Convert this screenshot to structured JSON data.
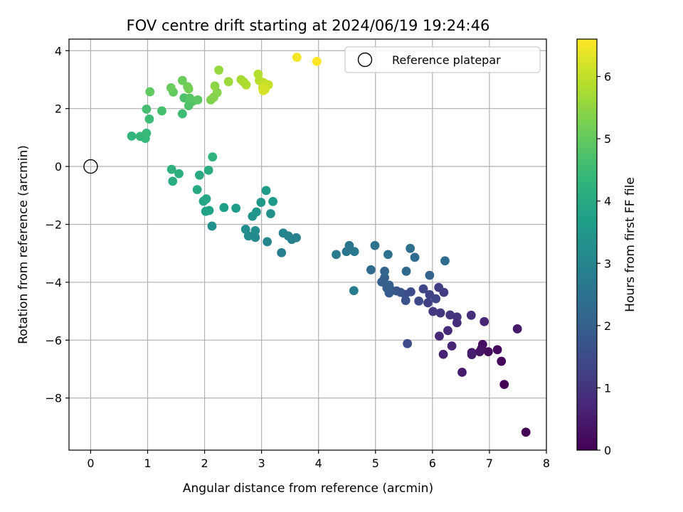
{
  "chart_data": {
    "type": "scatter",
    "title": "FOV centre drift starting at 2024/06/19 19:24:46",
    "xlabel": "Angular distance from reference (arcmin)",
    "ylabel": "Rotation from reference (arcmin)",
    "xlim": [
      -0.38,
      8.0
    ],
    "ylim": [
      -9.8,
      4.4
    ],
    "xticks": [
      0,
      1,
      2,
      3,
      4,
      5,
      6,
      7,
      8
    ],
    "yticks": [
      4,
      2,
      0,
      -2,
      -4,
      -6,
      -8
    ],
    "grid": true,
    "legend": {
      "position": "top-right",
      "entries": [
        {
          "label": "Reference platepar",
          "marker": "open-circle"
        }
      ]
    },
    "reference_point": {
      "x": 0,
      "y": 0
    },
    "colorbar": {
      "label": "Hours from first FF file",
      "colormap": "viridis",
      "range": [
        0,
        6.6
      ],
      "ticks": [
        0,
        1,
        2,
        3,
        4,
        5,
        6
      ]
    },
    "points": [
      {
        "x": 7.64,
        "y": -9.18,
        "h": 0.0
      },
      {
        "x": 7.26,
        "y": -7.53,
        "h": 0.05
      },
      {
        "x": 7.21,
        "y": -6.73,
        "h": 0.1
      },
      {
        "x": 7.14,
        "y": -6.33,
        "h": 0.15
      },
      {
        "x": 6.98,
        "y": -6.4,
        "h": 0.2
      },
      {
        "x": 6.88,
        "y": -6.15,
        "h": 0.25
      },
      {
        "x": 6.86,
        "y": -6.3,
        "h": 0.3
      },
      {
        "x": 6.83,
        "y": -6.4,
        "h": 0.35
      },
      {
        "x": 6.69,
        "y": -6.43,
        "h": 0.4
      },
      {
        "x": 7.49,
        "y": -5.61,
        "h": 0.45
      },
      {
        "x": 6.52,
        "y": -7.11,
        "h": 0.5
      },
      {
        "x": 6.69,
        "y": -6.5,
        "h": 0.55
      },
      {
        "x": 6.19,
        "y": -6.49,
        "h": 0.6
      },
      {
        "x": 6.34,
        "y": -6.2,
        "h": 0.65
      },
      {
        "x": 6.91,
        "y": -5.36,
        "h": 0.7
      },
      {
        "x": 6.12,
        "y": -5.86,
        "h": 0.75
      },
      {
        "x": 6.27,
        "y": -5.67,
        "h": 0.8
      },
      {
        "x": 6.43,
        "y": -5.4,
        "h": 0.85
      },
      {
        "x": 6.68,
        "y": -5.14,
        "h": 0.9
      },
      {
        "x": 6.43,
        "y": -5.2,
        "h": 0.95
      },
      {
        "x": 6.31,
        "y": -5.13,
        "h": 1.0
      },
      {
        "x": 6.14,
        "y": -5.06,
        "h": 1.05
      },
      {
        "x": 6.01,
        "y": -5.01,
        "h": 1.1
      },
      {
        "x": 6.2,
        "y": -4.35,
        "h": 1.15
      },
      {
        "x": 6.11,
        "y": -4.18,
        "h": 1.2
      },
      {
        "x": 5.92,
        "y": -4.71,
        "h": 1.25
      },
      {
        "x": 5.95,
        "y": -4.43,
        "h": 1.3
      },
      {
        "x": 6.06,
        "y": -4.57,
        "h": 1.35
      },
      {
        "x": 5.84,
        "y": -4.23,
        "h": 1.4
      },
      {
        "x": 5.76,
        "y": -4.65,
        "h": 1.45
      },
      {
        "x": 5.56,
        "y": -6.12,
        "h": 1.5
      },
      {
        "x": 5.62,
        "y": -4.33,
        "h": 1.55
      },
      {
        "x": 5.52,
        "y": -4.42,
        "h": 1.6
      },
      {
        "x": 5.53,
        "y": -4.63,
        "h": 1.65
      },
      {
        "x": 5.44,
        "y": -4.35,
        "h": 1.7
      },
      {
        "x": 5.37,
        "y": -4.3,
        "h": 1.75
      },
      {
        "x": 5.28,
        "y": -4.28,
        "h": 1.8
      },
      {
        "x": 5.24,
        "y": -4.37,
        "h": 1.85
      },
      {
        "x": 5.2,
        "y": -4.2,
        "h": 1.9
      },
      {
        "x": 5.16,
        "y": -3.84,
        "h": 1.95
      },
      {
        "x": 5.11,
        "y": -3.99,
        "h": 2.0
      },
      {
        "x": 5.24,
        "y": -4.1,
        "h": 2.05
      },
      {
        "x": 5.95,
        "y": -3.76,
        "h": 2.1
      },
      {
        "x": 5.16,
        "y": -3.62,
        "h": 2.15
      },
      {
        "x": 5.54,
        "y": -3.62,
        "h": 2.2
      },
      {
        "x": 4.92,
        "y": -3.57,
        "h": 2.25
      },
      {
        "x": 5.69,
        "y": -3.14,
        "h": 2.3
      },
      {
        "x": 6.22,
        "y": -3.26,
        "h": 2.35
      },
      {
        "x": 5.61,
        "y": -2.83,
        "h": 2.4
      },
      {
        "x": 5.22,
        "y": -3.04,
        "h": 2.45
      },
      {
        "x": 4.99,
        "y": -2.73,
        "h": 2.5
      },
      {
        "x": 4.54,
        "y": -2.73,
        "h": 2.55
      },
      {
        "x": 4.49,
        "y": -2.94,
        "h": 2.6
      },
      {
        "x": 4.63,
        "y": -2.94,
        "h": 2.65
      },
      {
        "x": 4.31,
        "y": -3.04,
        "h": 2.7
      },
      {
        "x": 4.62,
        "y": -4.29,
        "h": 2.75
      },
      {
        "x": 3.35,
        "y": -2.98,
        "h": 2.8
      },
      {
        "x": 3.53,
        "y": -2.52,
        "h": 2.85
      },
      {
        "x": 3.61,
        "y": -2.46,
        "h": 2.9
      },
      {
        "x": 3.47,
        "y": -2.4,
        "h": 2.95
      },
      {
        "x": 3.38,
        "y": -2.3,
        "h": 3.0
      },
      {
        "x": 3.1,
        "y": -2.6,
        "h": 3.05
      },
      {
        "x": 2.89,
        "y": -2.45,
        "h": 3.1
      },
      {
        "x": 2.77,
        "y": -2.4,
        "h": 3.15
      },
      {
        "x": 2.72,
        "y": -2.17,
        "h": 3.2
      },
      {
        "x": 2.89,
        "y": -2.22,
        "h": 3.25
      },
      {
        "x": 2.13,
        "y": -2.06,
        "h": 3.3
      },
      {
        "x": 3.16,
        "y": -1.63,
        "h": 3.35
      },
      {
        "x": 2.84,
        "y": -1.72,
        "h": 3.4
      },
      {
        "x": 2.91,
        "y": -1.57,
        "h": 3.45
      },
      {
        "x": 2.99,
        "y": -1.24,
        "h": 3.5
      },
      {
        "x": 3.2,
        "y": -1.21,
        "h": 3.55
      },
      {
        "x": 3.08,
        "y": -0.83,
        "h": 3.6
      },
      {
        "x": 2.55,
        "y": -1.44,
        "h": 3.65
      },
      {
        "x": 2.34,
        "y": -1.42,
        "h": 3.7
      },
      {
        "x": 2.02,
        "y": -1.55,
        "h": 3.75
      },
      {
        "x": 2.08,
        "y": -1.52,
        "h": 3.8
      },
      {
        "x": 1.98,
        "y": -1.2,
        "h": 3.85
      },
      {
        "x": 2.03,
        "y": -1.12,
        "h": 3.9
      },
      {
        "x": 1.87,
        "y": -0.8,
        "h": 3.95
      },
      {
        "x": 1.91,
        "y": -0.3,
        "h": 4.0
      },
      {
        "x": 2.07,
        "y": -0.13,
        "h": 4.05
      },
      {
        "x": 1.44,
        "y": -0.51,
        "h": 4.1
      },
      {
        "x": 1.55,
        "y": -0.25,
        "h": 4.15
      },
      {
        "x": 1.42,
        "y": -0.1,
        "h": 4.2
      },
      {
        "x": 2.14,
        "y": 0.33,
        "h": 4.25
      },
      {
        "x": 0.72,
        "y": 1.05,
        "h": 4.3
      },
      {
        "x": 0.87,
        "y": 1.04,
        "h": 4.35
      },
      {
        "x": 0.96,
        "y": 0.97,
        "h": 4.4
      },
      {
        "x": 0.98,
        "y": 1.15,
        "h": 4.45
      },
      {
        "x": 1.03,
        "y": 1.64,
        "h": 4.5
      },
      {
        "x": 1.61,
        "y": 1.82,
        "h": 4.55
      },
      {
        "x": 0.98,
        "y": 1.98,
        "h": 4.6
      },
      {
        "x": 1.25,
        "y": 1.92,
        "h": 4.65
      },
      {
        "x": 1.64,
        "y": 2.37,
        "h": 4.7
      },
      {
        "x": 1.72,
        "y": 2.1,
        "h": 4.75
      },
      {
        "x": 1.79,
        "y": 2.25,
        "h": 4.8
      },
      {
        "x": 1.74,
        "y": 2.36,
        "h": 4.85
      },
      {
        "x": 1.88,
        "y": 2.3,
        "h": 4.9
      },
      {
        "x": 1.04,
        "y": 2.58,
        "h": 4.95
      },
      {
        "x": 1.45,
        "y": 2.57,
        "h": 5.0
      },
      {
        "x": 1.41,
        "y": 2.72,
        "h": 5.05
      },
      {
        "x": 1.61,
        "y": 2.97,
        "h": 5.1
      },
      {
        "x": 1.7,
        "y": 2.76,
        "h": 5.15
      },
      {
        "x": 1.72,
        "y": 2.68,
        "h": 5.2
      },
      {
        "x": 2.11,
        "y": 2.3,
        "h": 5.3
      },
      {
        "x": 2.16,
        "y": 2.39,
        "h": 5.35
      },
      {
        "x": 2.22,
        "y": 2.55,
        "h": 5.4
      },
      {
        "x": 2.18,
        "y": 2.78,
        "h": 5.45
      },
      {
        "x": 2.25,
        "y": 3.33,
        "h": 5.55
      },
      {
        "x": 2.42,
        "y": 2.93,
        "h": 5.6
      },
      {
        "x": 2.64,
        "y": 3.0,
        "h": 5.7
      },
      {
        "x": 2.68,
        "y": 2.93,
        "h": 5.75
      },
      {
        "x": 2.73,
        "y": 2.82,
        "h": 5.8
      },
      {
        "x": 2.94,
        "y": 3.19,
        "h": 5.85
      },
      {
        "x": 2.96,
        "y": 2.97,
        "h": 5.9
      },
      {
        "x": 3.03,
        "y": 2.9,
        "h": 5.95
      },
      {
        "x": 3.07,
        "y": 2.85,
        "h": 6.0
      },
      {
        "x": 3.12,
        "y": 2.82,
        "h": 6.05
      },
      {
        "x": 3.02,
        "y": 2.72,
        "h": 6.1
      },
      {
        "x": 3.06,
        "y": 2.66,
        "h": 6.15
      },
      {
        "x": 3.03,
        "y": 2.62,
        "h": 6.2
      },
      {
        "x": 3.62,
        "y": 3.77,
        "h": 6.5
      },
      {
        "x": 3.97,
        "y": 3.63,
        "h": 6.6
      }
    ]
  }
}
